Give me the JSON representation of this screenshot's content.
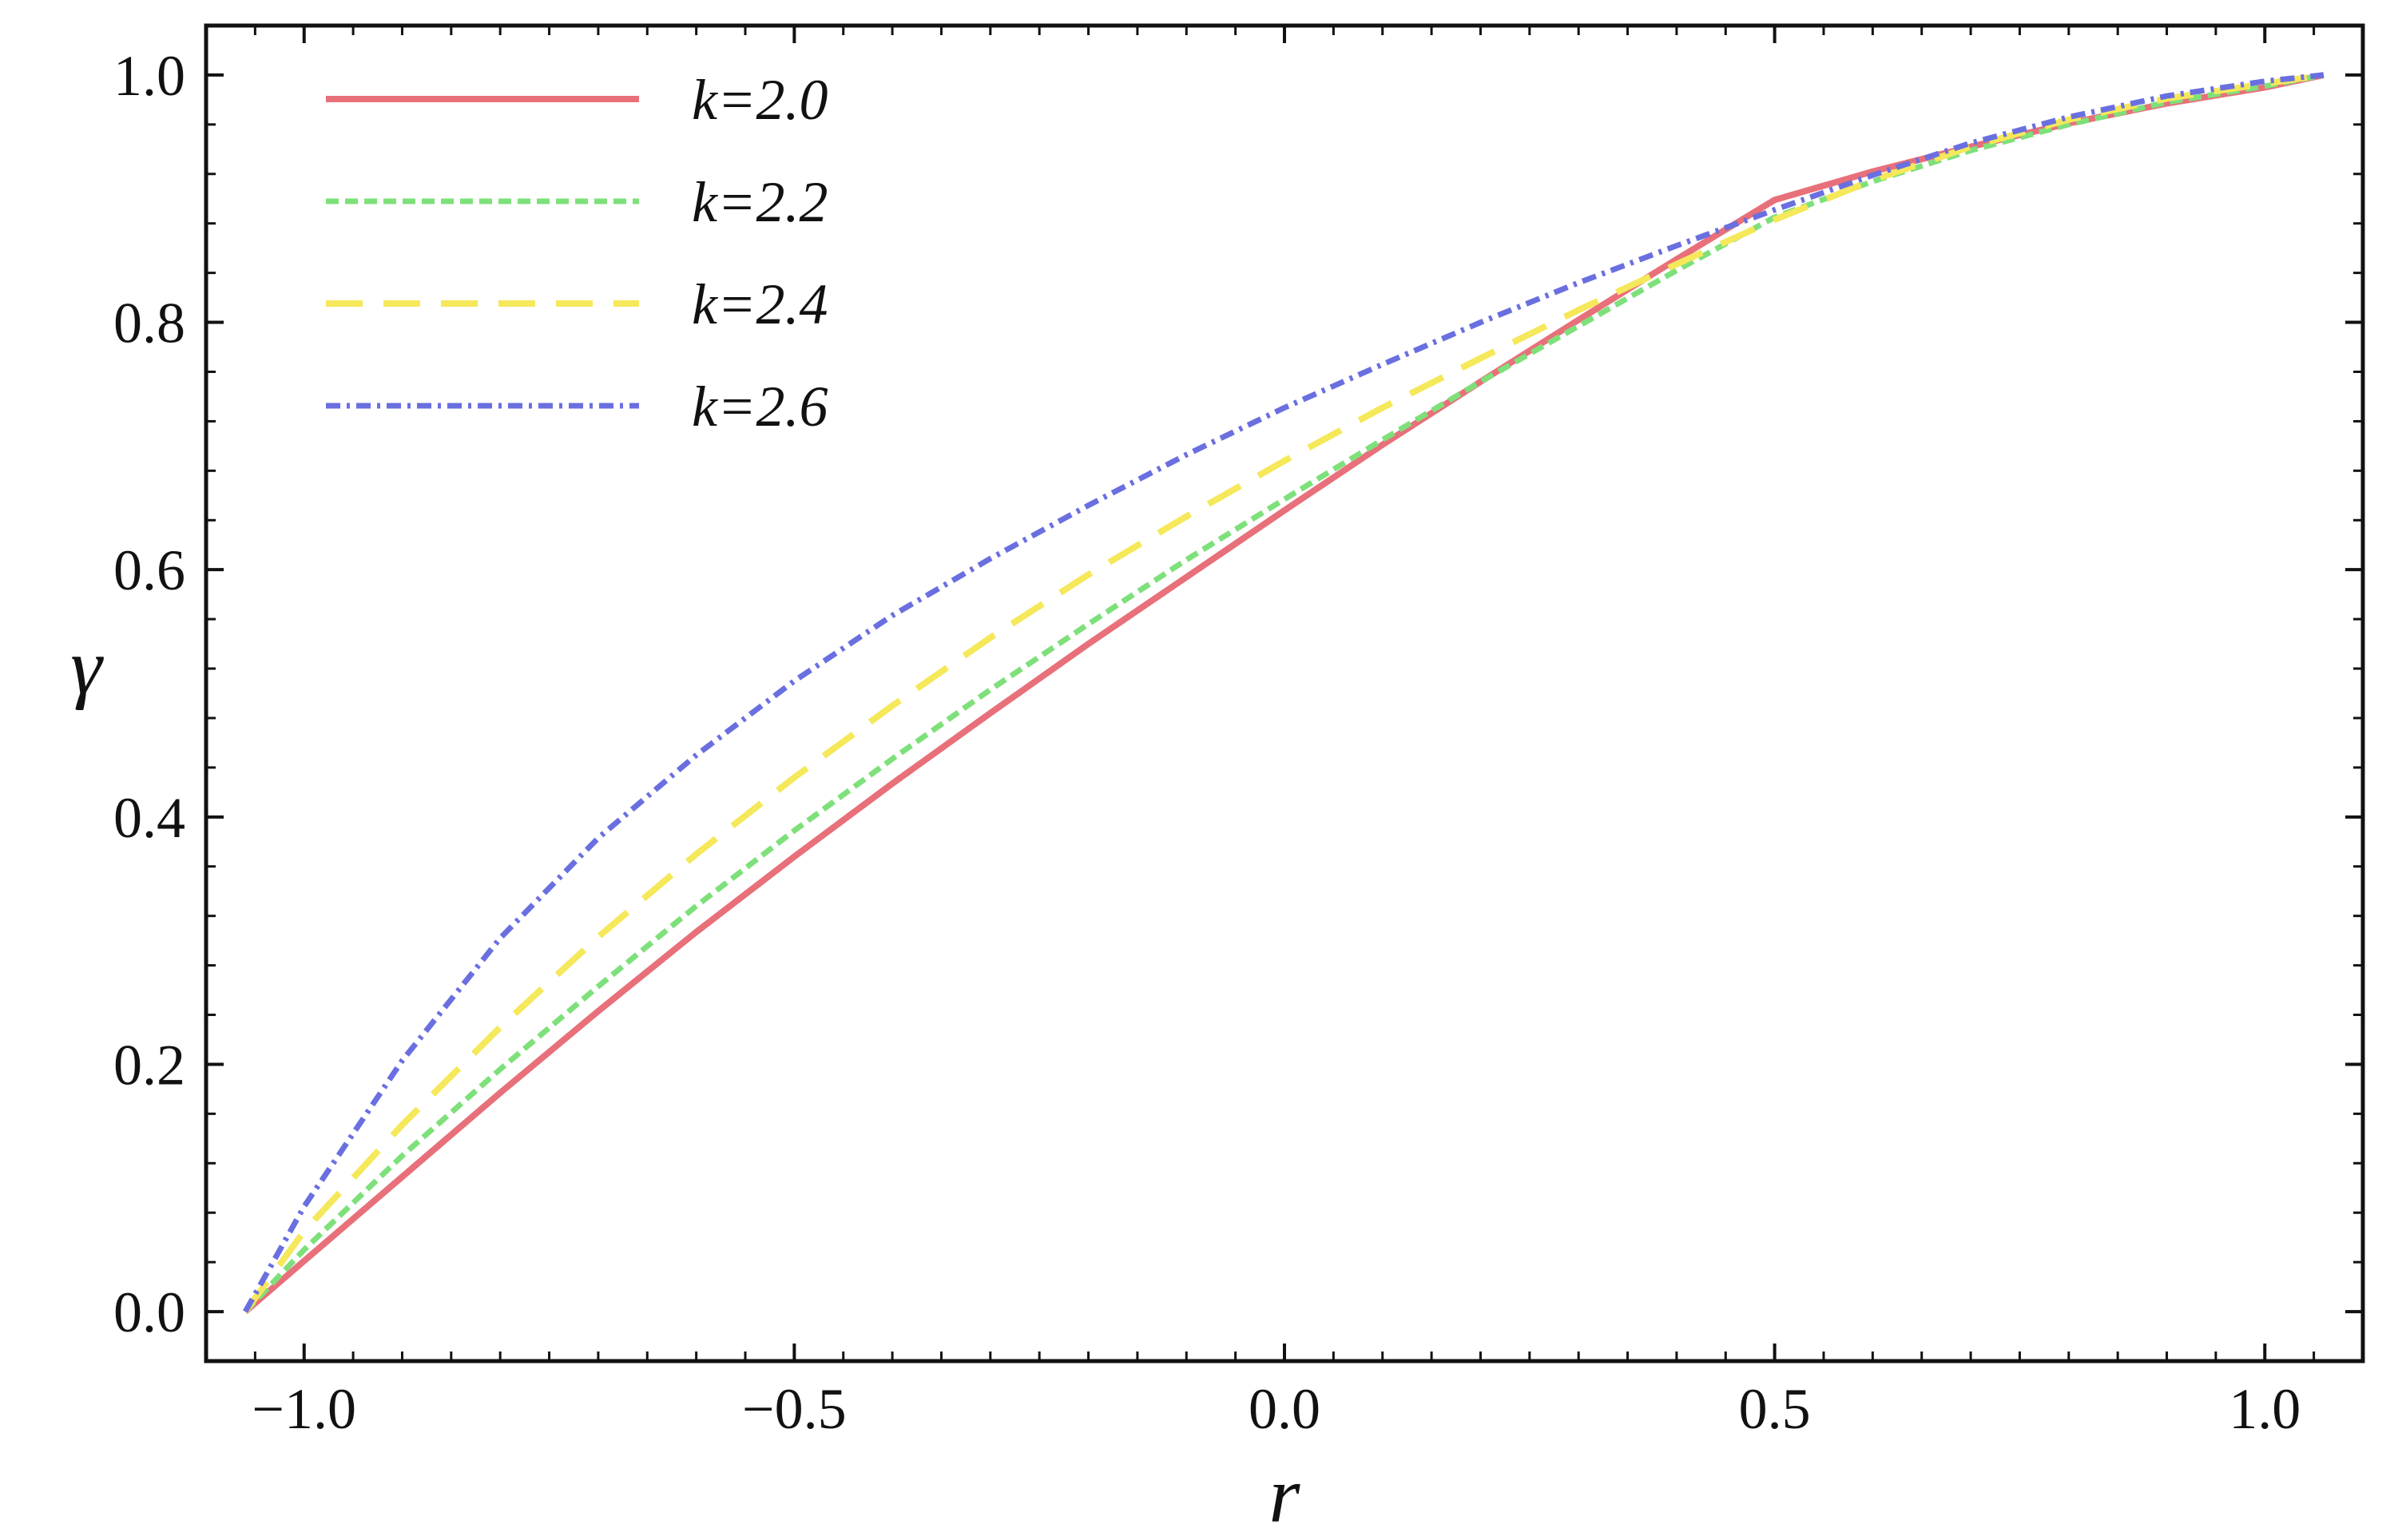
{
  "chart_data": {
    "type": "line",
    "title": "",
    "xlabel": "r",
    "ylabel": "γ",
    "xlim": [
      -1.1,
      1.1
    ],
    "ylim": [
      -0.04,
      1.04
    ],
    "grid": false,
    "legend_position": "top-left",
    "x_ticks": [
      {
        "value": -1.0,
        "label": "−1.0"
      },
      {
        "value": -0.5,
        "label": "−0.5"
      },
      {
        "value": 0.0,
        "label": "0.0"
      },
      {
        "value": 0.5,
        "label": "0.5"
      },
      {
        "value": 1.0,
        "label": "1.0"
      }
    ],
    "y_ticks": [
      {
        "value": 0.0,
        "label": "0.0"
      },
      {
        "value": 0.2,
        "label": "0.2"
      },
      {
        "value": 0.4,
        "label": "0.4"
      },
      {
        "value": 0.6,
        "label": "0.6"
      },
      {
        "value": 0.8,
        "label": "0.8"
      },
      {
        "value": 1.0,
        "label": "1.0"
      }
    ],
    "x": [
      -1.06,
      -1.0,
      -0.9,
      -0.8,
      -0.7,
      -0.6,
      -0.5,
      -0.4,
      -0.3,
      -0.2,
      -0.1,
      0.0,
      0.1,
      0.2,
      0.3,
      0.4,
      0.5,
      0.6,
      0.7,
      0.8,
      0.9,
      1.0,
      1.06
    ],
    "series": [
      {
        "name": "k=2.0",
        "color": "#e8707a",
        "dash": "solid",
        "values": [
          0.0,
          0.041,
          0.109,
          0.177,
          0.243,
          0.307,
          0.368,
          0.427,
          0.484,
          0.54,
          0.594,
          0.648,
          0.701,
          0.752,
          0.802,
          0.851,
          0.899,
          0.922,
          0.942,
          0.961,
          0.977,
          0.99,
          1.0
        ]
      },
      {
        "name": "k=2.2",
        "color": "#7ee07a",
        "dash": "dashed",
        "values": [
          0.0,
          0.05,
          0.126,
          0.196,
          0.263,
          0.328,
          0.389,
          0.447,
          0.503,
          0.556,
          0.608,
          0.657,
          0.705,
          0.752,
          0.797,
          0.842,
          0.885,
          0.914,
          0.939,
          0.96,
          0.978,
          0.991,
          1.0
        ]
      },
      {
        "name": "k=2.4",
        "color": "#f5e85a",
        "dash": "long-dashed",
        "values": [
          0.0,
          0.065,
          0.151,
          0.23,
          0.303,
          0.37,
          0.432,
          0.49,
          0.545,
          0.596,
          0.643,
          0.688,
          0.731,
          0.771,
          0.81,
          0.847,
          0.883,
          0.915,
          0.942,
          0.964,
          0.981,
          0.993,
          1.0
        ]
      },
      {
        "name": "k=2.6",
        "color": "#6a6fe0",
        "dash": "dot-dashed",
        "values": [
          0.0,
          0.085,
          0.203,
          0.302,
          0.383,
          0.45,
          0.51,
          0.563,
          0.609,
          0.652,
          0.693,
          0.731,
          0.766,
          0.8,
          0.832,
          0.862,
          0.891,
          0.919,
          0.945,
          0.966,
          0.983,
          0.995,
          1.0
        ]
      }
    ]
  }
}
